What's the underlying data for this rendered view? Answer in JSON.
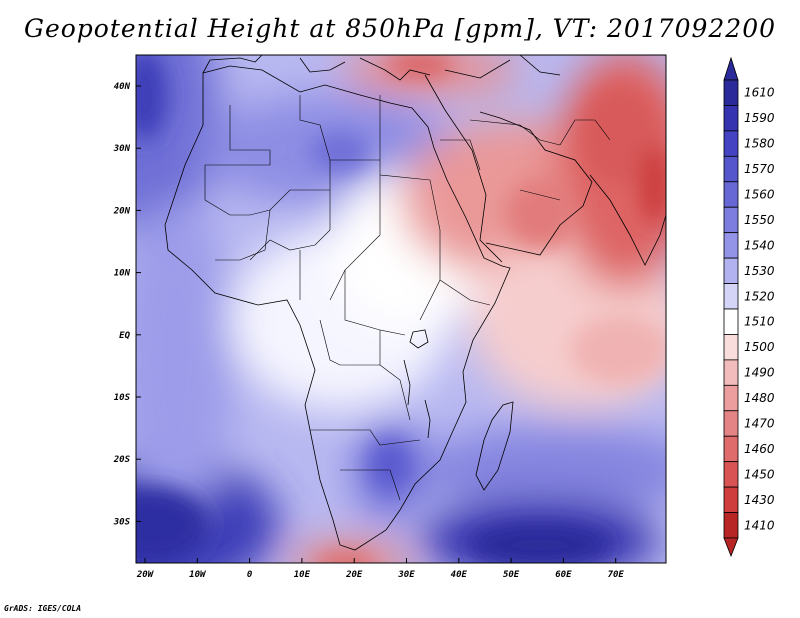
{
  "title": "Geopotential Height at 850hPa [gpm], VT: 2017092200",
  "credit": "GrADS: IGES/COLA",
  "map": {
    "lat_labels": [
      "40N",
      "30N",
      "20N",
      "10N",
      "EQ",
      "10S",
      "20S",
      "30S"
    ],
    "lon_labels": [
      "20W",
      "10W",
      "0",
      "10E",
      "20E",
      "30E",
      "40E",
      "50E",
      "60E",
      "70E"
    ]
  },
  "colorbar": {
    "levels": [
      "1610",
      "1590",
      "1580",
      "1570",
      "1560",
      "1550",
      "1540",
      "1530",
      "1520",
      "1510",
      "1500",
      "1490",
      "1480",
      "1470",
      "1460",
      "1450",
      "1430",
      "1410"
    ],
    "colors": [
      "#2b2a9a",
      "#3533b0",
      "#4444c2",
      "#5656cc",
      "#6767d6",
      "#7d7de0",
      "#9393e8",
      "#b2b2f0",
      "#d4d4f7",
      "#ffffff",
      "#f9dcdc",
      "#f3bcbc",
      "#ec9e9e",
      "#e58484",
      "#df6b6b",
      "#d85353",
      "#cf3d3d",
      "#b82525"
    ]
  },
  "zones": [
    {
      "name": "sahara-blue-high",
      "color": "#8d8de4"
    },
    {
      "name": "atlantic-high",
      "color": "#7070d8"
    },
    {
      "name": "south-atlantic-high",
      "color": "#3a39b6"
    },
    {
      "name": "indian-ocean-high",
      "color": "#3a39b6"
    },
    {
      "name": "arabia-low",
      "color": "#ea9898"
    },
    {
      "name": "india-low",
      "color": "#de6565"
    },
    {
      "name": "indian-ocean-ridge",
      "color": "#f6cdcd"
    },
    {
      "name": "south-africa-high",
      "color": "#6e6ed8"
    },
    {
      "name": "cape-low",
      "color": "#e68a8a"
    }
  ]
}
